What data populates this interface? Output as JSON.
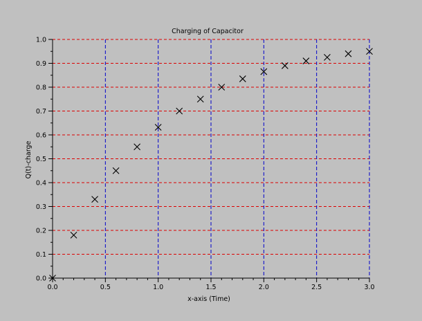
{
  "chart_data": {
    "type": "scatter",
    "title": "Charging of Capacitor",
    "xlabel": "x-axis (Time)",
    "ylabel": "Q(t)-charge",
    "xlim": [
      0,
      3
    ],
    "ylim": [
      0,
      1
    ],
    "x_ticks": [
      "0.0",
      "0.5",
      "1.0",
      "1.5",
      "2.0",
      "2.5",
      "3.0"
    ],
    "y_ticks": [
      "0.0",
      "0.1",
      "0.2",
      "0.3",
      "0.4",
      "0.5",
      "0.6",
      "0.7",
      "0.8",
      "0.9",
      "1.0"
    ],
    "grid": true,
    "x_grid_color": "#0000cc",
    "y_grid_color": "#dd0000",
    "marker": "x",
    "marker_color": "#000000",
    "background_color": "#c0c0c0",
    "series": [
      {
        "x": [
          0.0,
          0.2,
          0.4,
          0.6,
          0.8,
          1.0,
          1.2,
          1.4,
          1.6,
          1.8,
          2.0,
          2.2,
          2.4,
          2.6,
          2.8,
          3.0
        ],
        "y": [
          0.0,
          0.18,
          0.33,
          0.45,
          0.55,
          0.632,
          0.7,
          0.75,
          0.8,
          0.835,
          0.865,
          0.89,
          0.91,
          0.925,
          0.94,
          0.95
        ]
      }
    ]
  }
}
